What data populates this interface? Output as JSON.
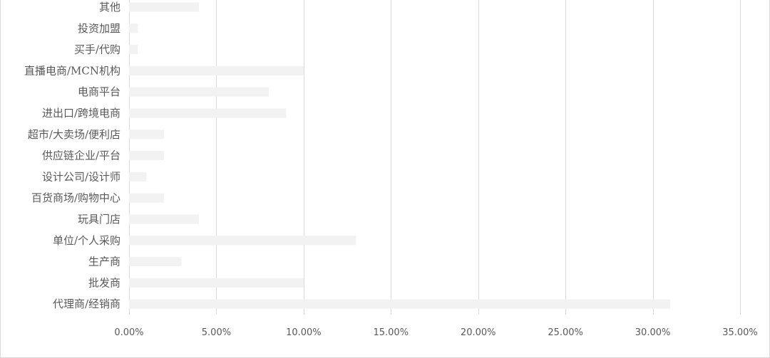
{
  "chart_data": {
    "type": "bar",
    "orientation": "horizontal",
    "categories": [
      "其他",
      "投资加盟",
      "买手/代购",
      "直播电商/MCN机构",
      "电商平台",
      "进出口/跨境电商",
      "超市/大卖场/便利店",
      "供应链企业/平台",
      "设计公司/设计师",
      "百货商场/购物中心",
      "玩具门店",
      "单位/个人采购",
      "生产商",
      "批发商",
      "代理商/经销商"
    ],
    "values": [
      4,
      0.5,
      0.5,
      10,
      8,
      9,
      2,
      2,
      1,
      2,
      4,
      13,
      3,
      10,
      31
    ],
    "xlim": [
      0,
      35
    ],
    "xticks": [
      "0.00%",
      "5.00%",
      "10.00%",
      "15.00%",
      "20.00%",
      "25.00%",
      "30.00%",
      "35.00%"
    ],
    "xtick_values": [
      0,
      5,
      10,
      15,
      20,
      25,
      30,
      35
    ],
    "grid": true,
    "legend": "none",
    "bar_color": "#f2f2f2",
    "grid_color": "#d9d9d9",
    "text_color": "#595959"
  }
}
